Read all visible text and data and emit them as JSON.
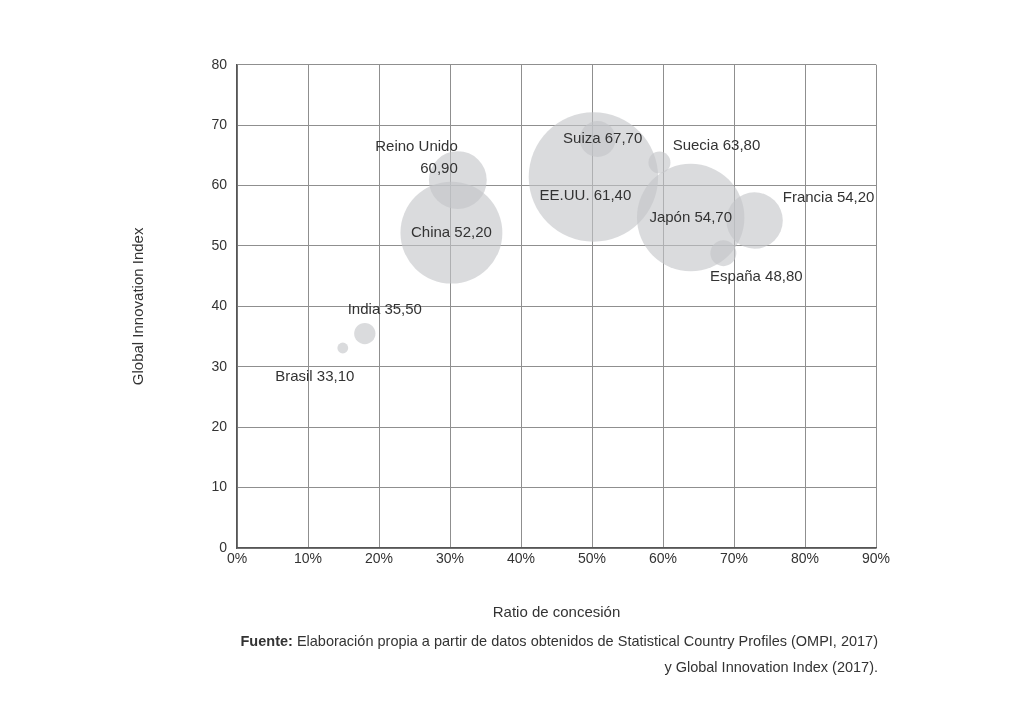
{
  "chart_data": {
    "type": "bubble",
    "xlabel": "Ratio de concesión",
    "ylabel": "Global Innovation Index",
    "x": [
      14.9,
      18.0,
      31.1,
      30.2,
      50.2,
      50.8,
      59.5,
      63.9,
      72.9,
      68.5
    ],
    "series": [
      {
        "color": "#c4c5c8",
        "values": [
          33.1,
          35.5,
          60.9,
          52.2,
          61.4,
          67.7,
          63.8,
          54.7,
          54.2,
          48.8
        ],
        "sizes": [
          0.007,
          0.027,
          0.2,
          0.62,
          1,
          0.077,
          0.029,
          0.69,
          0.19,
          0.04
        ]
      }
    ],
    "xlim": [
      0,
      90
    ],
    "xticks": [
      {
        "value": 0,
        "label": "0%"
      },
      {
        "value": 10,
        "label": "10%"
      },
      {
        "value": 20,
        "label": "20%"
      },
      {
        "value": 30,
        "label": "30%"
      },
      {
        "value": 40,
        "label": "40%"
      },
      {
        "value": 50,
        "label": "50%"
      },
      {
        "value": 60,
        "label": "60%"
      },
      {
        "value": 70,
        "label": "70%"
      },
      {
        "value": 80,
        "label": "80%"
      },
      {
        "value": 90,
        "label": "90%"
      }
    ],
    "ylim": [
      0,
      80
    ],
    "yticks": [
      0,
      10,
      20,
      30,
      40,
      50,
      60,
      70,
      80
    ],
    "grid": true,
    "legend": false,
    "annotations": [
      {
        "text": "Brasil 33,10",
        "x": 14.9,
        "y": 33.1
      },
      {
        "text": "India 35,50",
        "x": 18.0,
        "y": 35.5
      },
      {
        "text": "Reino Unido 60,90",
        "x": 31.1,
        "y": 60.9
      },
      {
        "text": "China 52,20",
        "x": 30.2,
        "y": 52.2
      },
      {
        "text": "EE.UU. 61,40",
        "x": 50.2,
        "y": 61.4
      },
      {
        "text": "Suiza 67,70",
        "x": 50.8,
        "y": 67.7
      },
      {
        "text": "Suecia 63,80",
        "x": 59.5,
        "y": 63.8
      },
      {
        "text": "Japón 54,70",
        "x": 63.9,
        "y": 54.7
      },
      {
        "text": "Francia 54,20",
        "x": 72.9,
        "y": 54.2
      },
      {
        "text": "España 48,80",
        "x": 68.5,
        "y": 48.8
      },
      "Fuente: Elaboración propia a partir de datos obtenidos de Statistical Country Profiles (OMPI, 2017) y Global Innovation Index (2017)."
    ]
  }
}
